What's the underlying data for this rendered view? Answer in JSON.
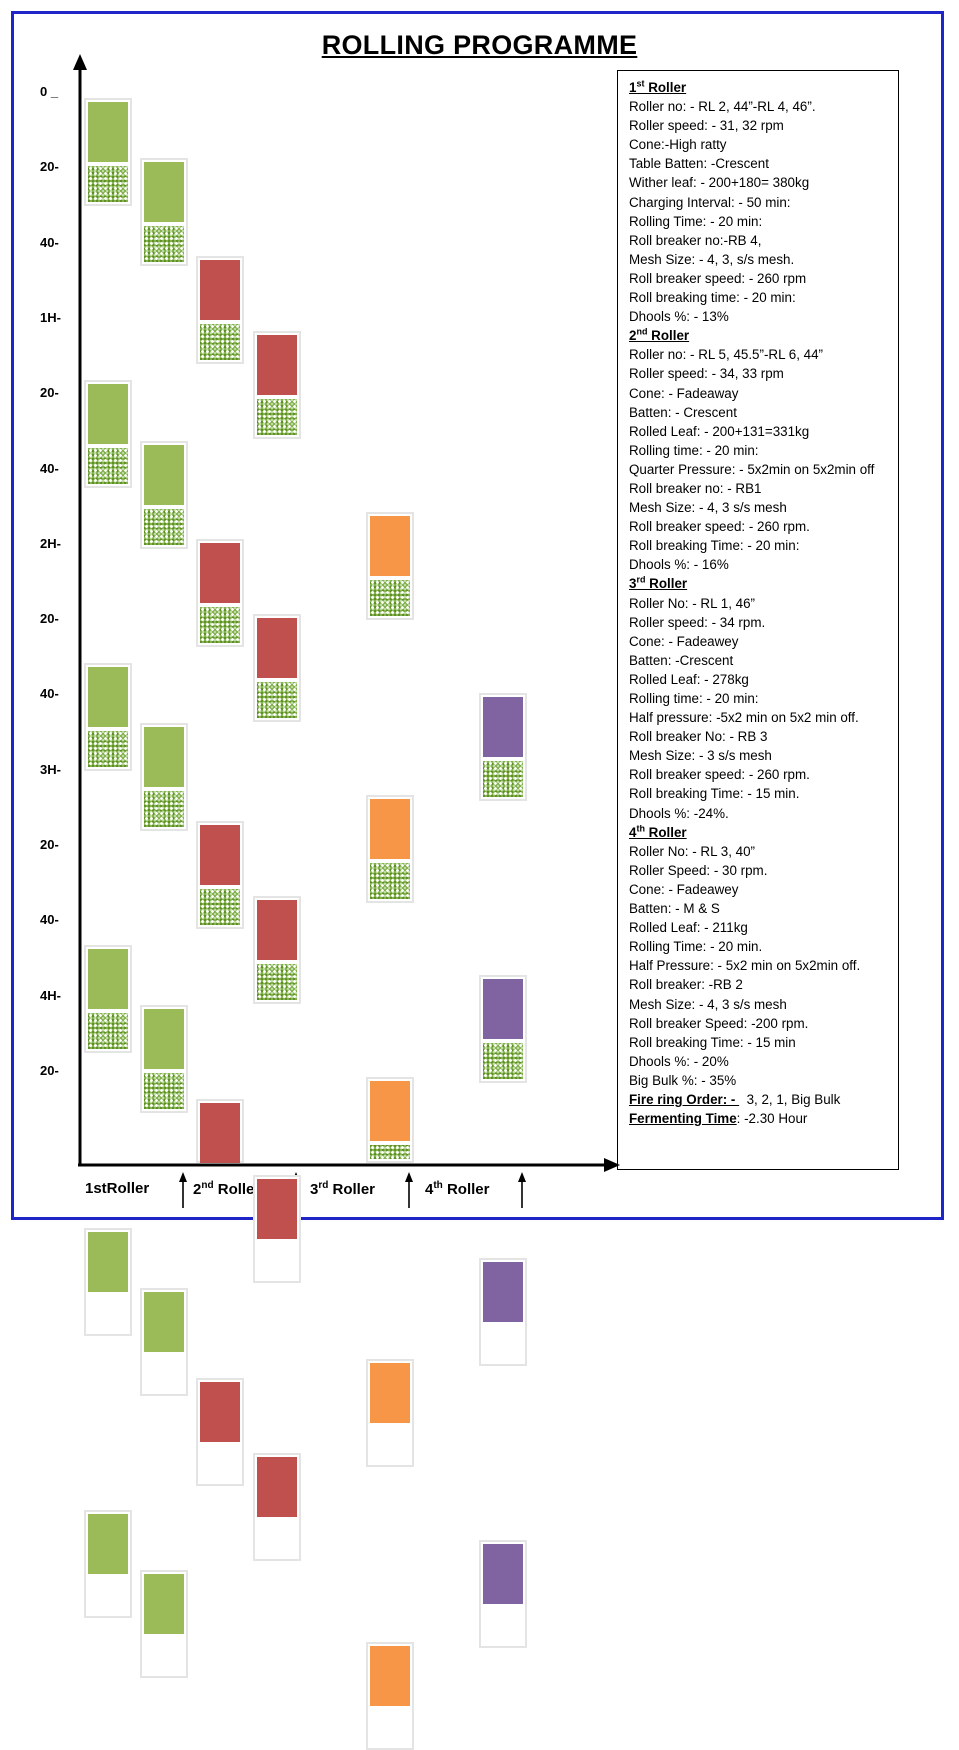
{
  "title": "ROLLING PROGRAMME",
  "y_axis_ticks": [
    "0 _",
    "20-",
    "40-",
    "1H-",
    "20-",
    "40-",
    "2H-",
    "20-",
    "40-",
    "3H-",
    "20-",
    "40-",
    "4H-",
    "20-"
  ],
  "x_axis_labels": [
    {
      "pre": "1stRoller",
      "sup": "",
      "post": ""
    },
    {
      "pre": "2",
      "sup": "nd",
      "post": " Roller"
    },
    {
      "pre": "3",
      "sup": "rd",
      "post": " Roller"
    },
    {
      "pre": "4",
      "sup": "th",
      "post": " Roller"
    }
  ],
  "colors": {
    "roller1": "#9bbb59",
    "roller2": "#c0504d",
    "roller3": "#f79646",
    "roller4": "#8064a2",
    "frame": "#1f25c9",
    "axis": "#000000"
  },
  "schedule": {
    "unit": "minutes",
    "roller1_a": [
      0,
      75,
      150,
      225,
      300,
      375
    ],
    "roller1_b": [
      16,
      91,
      166,
      241,
      316,
      391
    ],
    "roller2_a": [
      42,
      117,
      192,
      266,
      340
    ],
    "roller2_b": [
      62,
      137,
      212,
      286,
      360
    ],
    "roller3": [
      110,
      185,
      260,
      335,
      410
    ],
    "roller4": [
      158,
      233,
      308,
      383
    ]
  },
  "info": {
    "r1": {
      "num": "1",
      "sup": "st",
      "head": " Roller",
      "lines": [
        "Roller no: - RL 2, 44”-RL 4, 46”.",
        "Roller speed: - 31, 32 rpm",
        "Cone:-High ratty",
        "Table Batten: -Crescent",
        "Wither leaf: - 200+180= 380kg",
        "Charging Interval: - 50 min:",
        "Rolling Time: - 20 min:",
        "Roll breaker no:-RB 4,",
        "Mesh Size: - 4, 3, s/s mesh.",
        "Roll breaker speed: - 260 rpm",
        "Roll breaking time: - 20 min:",
        "Dhools %: - 13%"
      ]
    },
    "r2": {
      "num": "2",
      "sup": "nd",
      "head": " Roller",
      "lines": [
        "Roller no: - RL 5, 45.5”-RL 6, 44”",
        "Roller speed: - 34, 33 rpm",
        "Cone: - Fadeaway",
        "Batten: - Crescent",
        "Rolled Leaf: - 200+131=331kg",
        "Rolling time: - 20 min:",
        "Quarter Pressure: - 5x2min on 5x2min off",
        "Roll breaker no: - RB1",
        "Mesh Size: - 4, 3 s/s mesh",
        "Roll breaker speed: - 260 rpm.",
        "Roll breaking Time: - 20 min:",
        "Dhools %: - 16%"
      ]
    },
    "r3": {
      "num": "3",
      "sup": "rd",
      "head": " Roller",
      "lines": [
        "Roller No: - RL 1, 46”",
        "Roller speed: - 34 rpm.",
        "Cone: - Fadeawey",
        "Batten: -Crescent",
        "Rolled Leaf: - 278kg",
        "Rolling time: - 20 min:",
        "Half pressure: -5x2 min on 5x2 min off.",
        "Roll breaker No: - RB 3",
        "Mesh Size: - 3 s/s mesh",
        "Roll breaker speed: - 260 rpm.",
        "Roll breaking Time: - 15 min.",
        "Dhools %: -24%."
      ]
    },
    "r4": {
      "num": "4",
      "sup": "th",
      "head": " Roller",
      "lines": [
        "Roller No: - RL 3, 40”",
        "Roller Speed: - 30 rpm.",
        "Cone: - Fadeawey",
        "Batten: - M & S",
        "Rolled Leaf: - 211kg",
        "Rolling Time: - 20 min.",
        "Half Pressure: - 5x2 min on 5x2min off.",
        "Roll breaker: -RB 2",
        "Mesh Size: - 4, 3 s/s mesh",
        "Roll breaker Speed: -200 rpm.",
        "Roll breaking Time: - 15 min",
        "Dhools %: - 20%",
        "Big Bulk %: - 35%"
      ]
    },
    "firing_label": "Fire ring Order: - ",
    "firing_value": "  3, 2, 1, Big Bulk",
    "fermenting_label": "Fermenting Time",
    "fermenting_value": ": -2.30 Hour"
  }
}
